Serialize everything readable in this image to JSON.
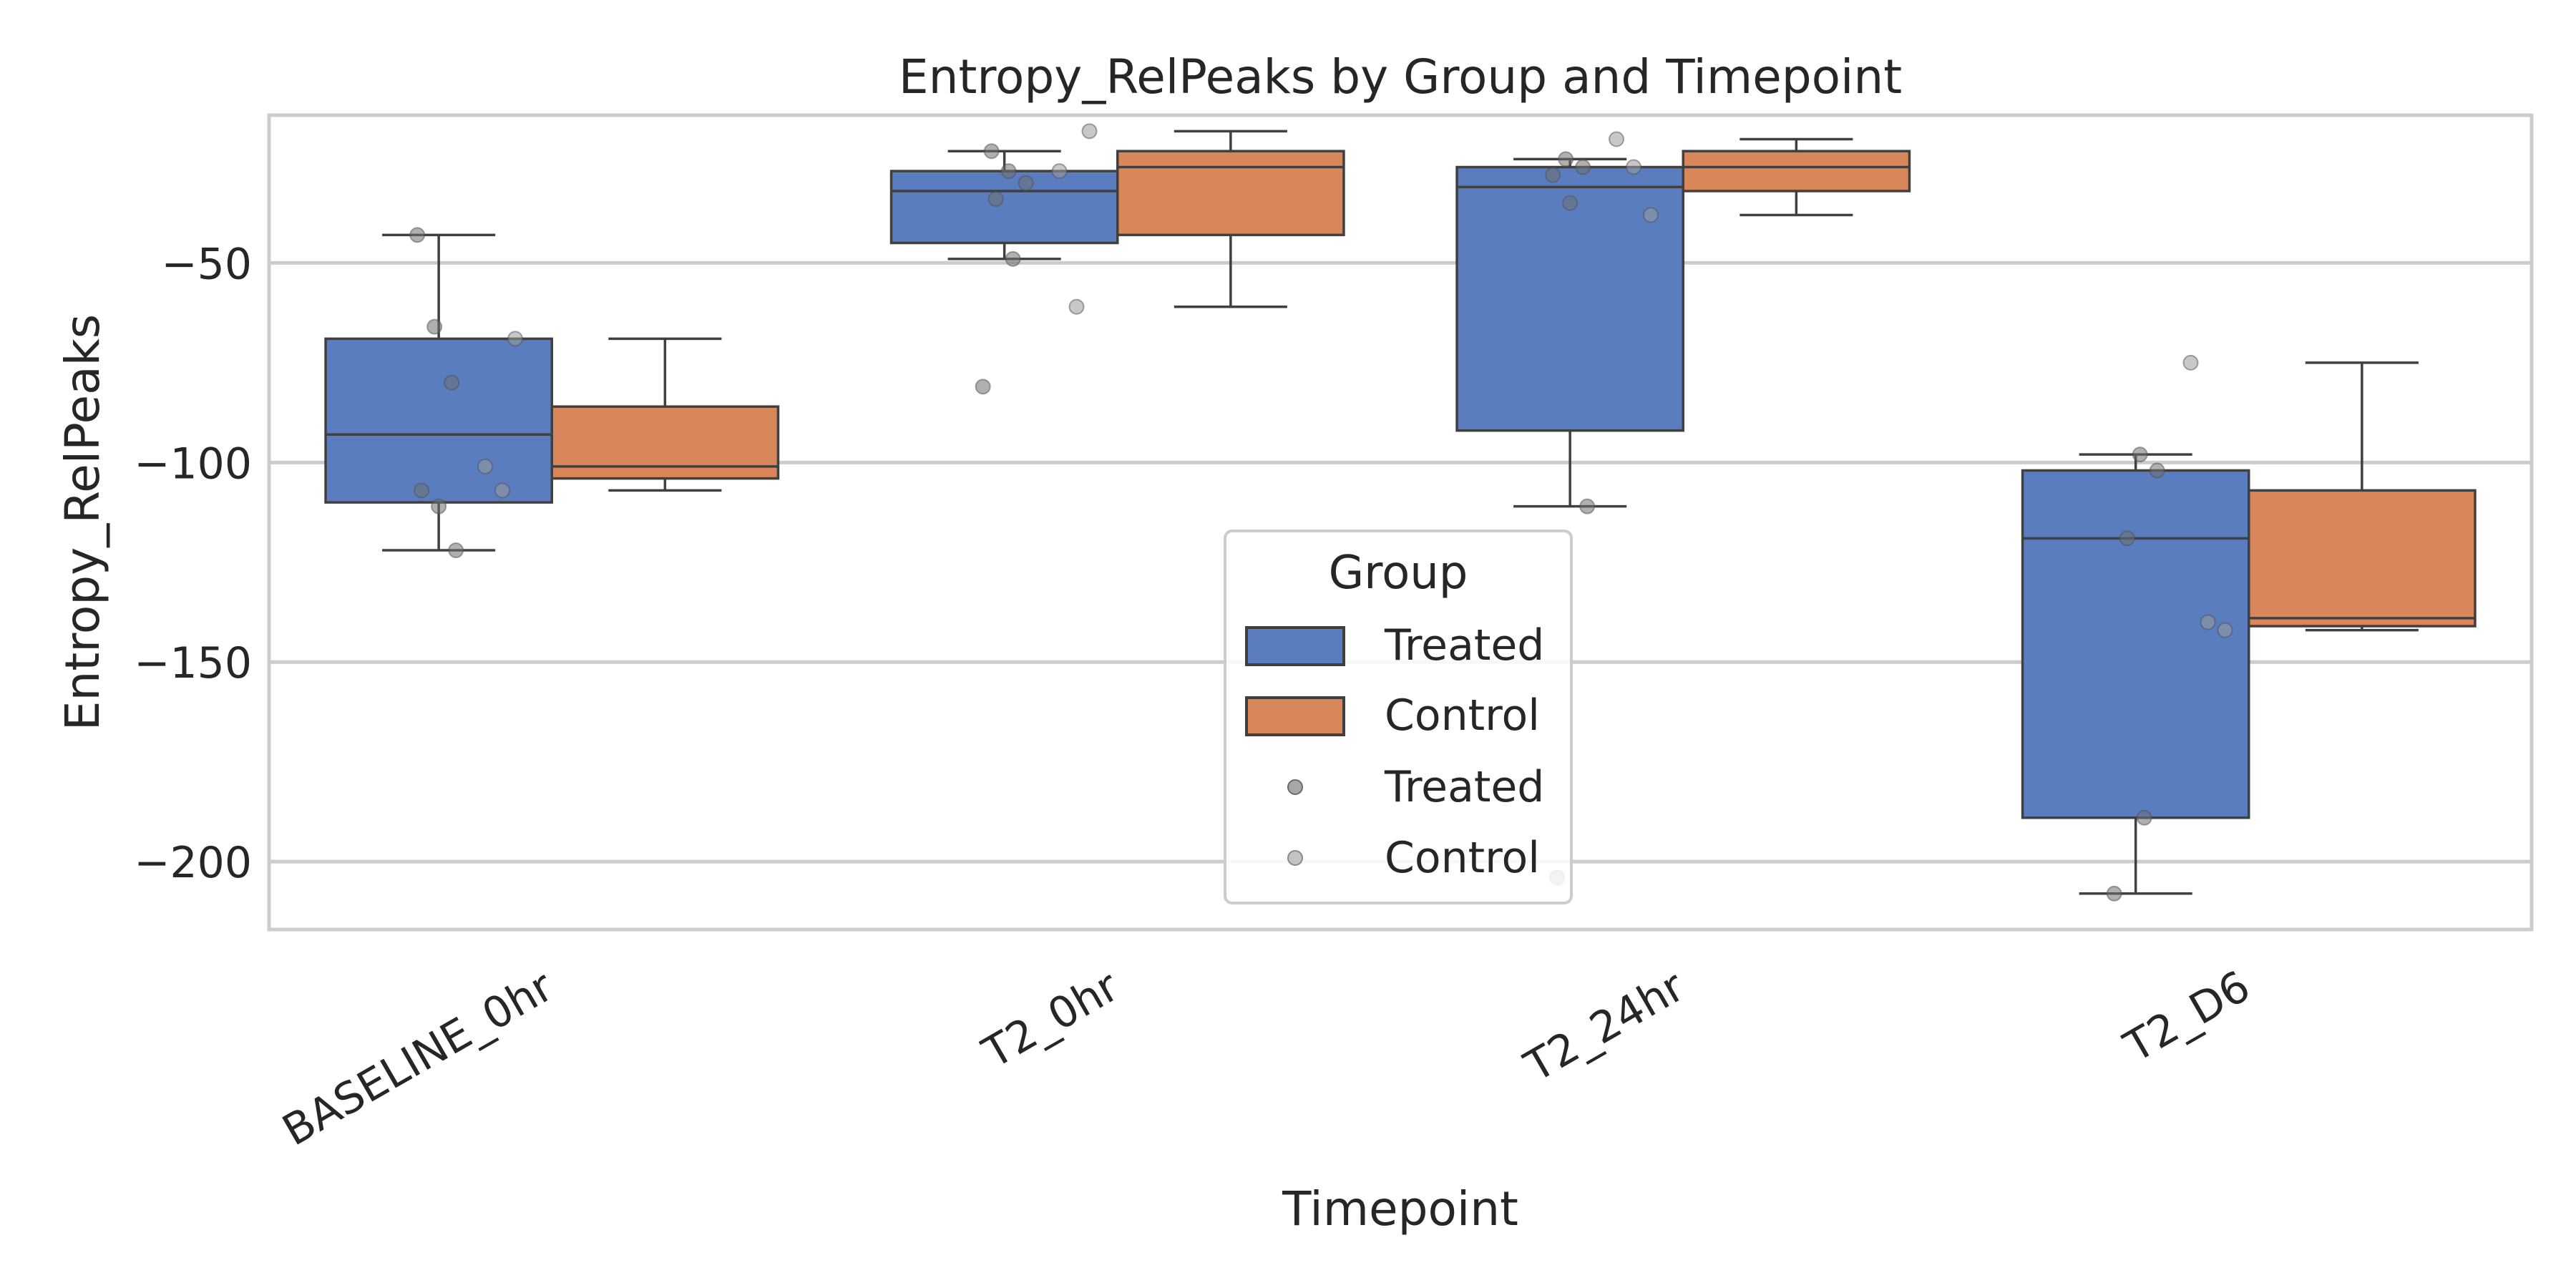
{
  "chart_data": {
    "type": "box",
    "title": "Entropy_RelPeaks by Group and Timepoint",
    "xlabel": "Timepoint",
    "ylabel": "Entropy_RelPeaks",
    "ylim": [
      -217,
      -13
    ],
    "yticks": [
      -50,
      -100,
      -150,
      -200
    ],
    "ytick_labels": [
      "−50",
      "−100",
      "−150",
      "−200"
    ],
    "categories": [
      "BASELINE_0hr",
      "T2_0hr",
      "T2_24hr",
      "T2_D6"
    ],
    "grid": true,
    "legend": {
      "title": "Group",
      "placement": "center",
      "entries": [
        {
          "label": "Treated",
          "kind": "box",
          "color": "#5a7dc0"
        },
        {
          "label": "Control",
          "kind": "box",
          "color": "#d9875a"
        },
        {
          "label": "Treated",
          "kind": "point",
          "color": "#a3a3a3"
        },
        {
          "label": "Control",
          "kind": "point",
          "color": "#bdbdbd"
        }
      ]
    },
    "series": [
      {
        "name": "Treated",
        "color": "#5a7dc0",
        "boxes": [
          {
            "category": "BASELINE_0hr",
            "whisker_low": -122,
            "q1": -110,
            "median": -93,
            "q3": -69,
            "whisker_high": -43
          },
          {
            "category": "T2_0hr",
            "whisker_low": -49,
            "q1": -45,
            "median": -32,
            "q3": -27,
            "whisker_high": -22
          },
          {
            "category": "T2_24hr",
            "whisker_low": -111,
            "q1": -92,
            "median": -31,
            "q3": -26,
            "whisker_high": -24
          },
          {
            "category": "T2_D6",
            "whisker_low": -208,
            "q1": -189,
            "median": -119,
            "q3": -102,
            "whisker_high": -98
          }
        ],
        "points": [
          {
            "category": "BASELINE_0hr",
            "values": [
              -43,
              -66,
              -80,
              -107,
              -111,
              -122
            ]
          },
          {
            "category": "T2_0hr",
            "values": [
              -22,
              -27,
              -30,
              -34,
              -49,
              -81
            ]
          },
          {
            "category": "T2_24hr",
            "values": [
              -24,
              -26,
              -28,
              -35,
              -111,
              -204
            ]
          },
          {
            "category": "T2_D6",
            "values": [
              -98,
              -102,
              -119,
              -189,
              -208
            ]
          }
        ]
      },
      {
        "name": "Control",
        "color": "#d9875a",
        "boxes": [
          {
            "category": "BASELINE_0hr",
            "whisker_low": -107,
            "q1": -104,
            "median": -101,
            "q3": -86,
            "whisker_high": -69
          },
          {
            "category": "T2_0hr",
            "whisker_low": -61,
            "q1": -43,
            "median": -26,
            "q3": -22,
            "whisker_high": -17
          },
          {
            "category": "T2_24hr",
            "whisker_low": -38,
            "q1": -32,
            "median": -26,
            "q3": -22,
            "whisker_high": -19
          },
          {
            "category": "T2_D6",
            "whisker_low": -142,
            "q1": -141,
            "median": -139,
            "q3": -107,
            "whisker_high": -75
          }
        ],
        "points": [
          {
            "category": "BASELINE_0hr",
            "values": [
              -69,
              -101,
              -107
            ]
          },
          {
            "category": "T2_0hr",
            "values": [
              -17,
              -27,
              -61
            ]
          },
          {
            "category": "T2_24hr",
            "values": [
              -19,
              -26,
              -38
            ]
          },
          {
            "category": "T2_D6",
            "values": [
              -75,
              -140,
              -142
            ]
          }
        ]
      }
    ]
  }
}
